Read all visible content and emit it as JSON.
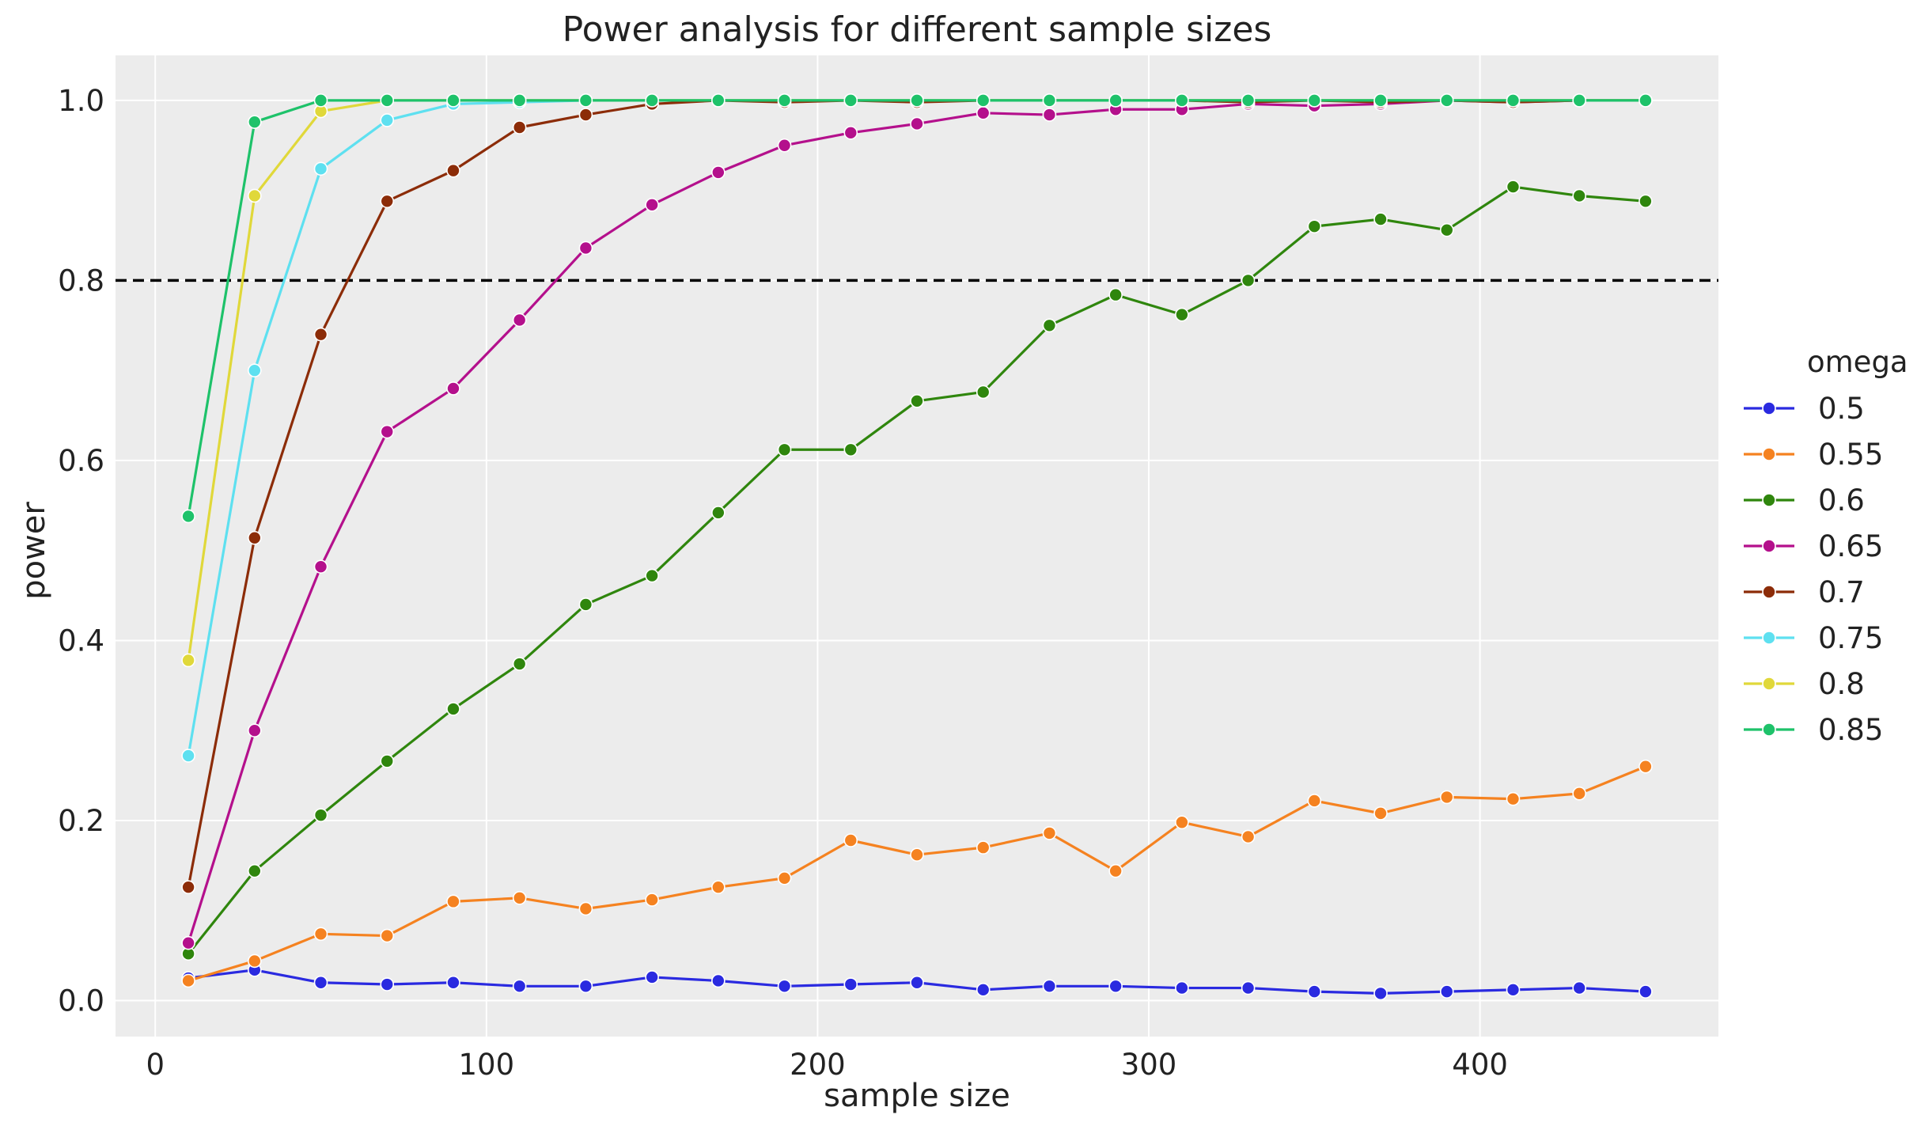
{
  "chart_data": {
    "type": "line",
    "title": "Power analysis for different sample sizes",
    "xlabel": "sample size",
    "ylabel": "power",
    "xlim": [
      -12,
      472
    ],
    "ylim": [
      -0.04,
      1.05
    ],
    "xticks": [
      0,
      100,
      200,
      300,
      400
    ],
    "xtick_labels": [
      "0",
      "100",
      "200",
      "300",
      "400"
    ],
    "yticks": [
      0.0,
      0.2,
      0.4,
      0.6,
      0.8,
      1.0
    ],
    "ytick_labels": [
      "0.0",
      "0.2",
      "0.4",
      "0.6",
      "0.8",
      "1.0"
    ],
    "grid": true,
    "background": "#ececec",
    "reference_line": {
      "y": 0.8,
      "style": "dashed",
      "color": "#000000"
    },
    "legend": {
      "title": "omega",
      "placement": "right"
    },
    "x": [
      10,
      30,
      50,
      70,
      90,
      110,
      130,
      150,
      170,
      190,
      210,
      230,
      250,
      270,
      290,
      310,
      330,
      350,
      370,
      390,
      410,
      430,
      450
    ],
    "series": [
      {
        "name": "0.5",
        "color": "#2a2ae0",
        "values": [
          0.025,
          0.034,
          0.02,
          0.018,
          0.02,
          0.016,
          0.016,
          0.026,
          0.022,
          0.016,
          0.018,
          0.02,
          0.012,
          0.016,
          0.016,
          0.014,
          0.014,
          0.01,
          0.008,
          0.01,
          0.012,
          0.014,
          0.01
        ]
      },
      {
        "name": "0.55",
        "color": "#f58220",
        "values": [
          0.022,
          0.044,
          0.074,
          0.072,
          0.11,
          0.114,
          0.102,
          0.112,
          0.126,
          0.136,
          0.178,
          0.162,
          0.17,
          0.186,
          0.144,
          0.198,
          0.182,
          0.222,
          0.208,
          0.226,
          0.224,
          0.23,
          0.26
        ]
      },
      {
        "name": "0.6",
        "color": "#2f860d",
        "values": [
          0.052,
          0.144,
          0.206,
          0.266,
          0.324,
          0.374,
          0.44,
          0.472,
          0.542,
          0.612,
          0.612,
          0.666,
          0.676,
          0.75,
          0.784,
          0.762,
          0.8,
          0.86,
          0.868,
          0.856,
          0.904,
          0.894,
          0.888
        ]
      },
      {
        "name": "0.65",
        "color": "#b4108c",
        "values": [
          0.064,
          0.3,
          0.482,
          0.632,
          0.68,
          0.756,
          0.836,
          0.884,
          0.92,
          0.95,
          0.964,
          0.974,
          0.986,
          0.984,
          0.99,
          0.99,
          0.996,
          0.994,
          0.996,
          1.0,
          0.998,
          1.0,
          1.0
        ]
      },
      {
        "name": "0.7",
        "color": "#8c2c08",
        "values": [
          0.126,
          0.514,
          0.74,
          0.888,
          0.922,
          0.97,
          0.984,
          0.996,
          1.0,
          0.998,
          1.0,
          0.998,
          1.0,
          1.0,
          1.0,
          1.0,
          0.998,
          1.0,
          0.998,
          1.0,
          0.998,
          1.0,
          1.0
        ]
      },
      {
        "name": "0.75",
        "color": "#5ee0f0",
        "values": [
          0.272,
          0.7,
          0.924,
          0.978,
          0.996,
          0.998,
          1.0,
          1.0,
          1.0,
          1.0,
          1.0,
          1.0,
          1.0,
          1.0,
          1.0,
          1.0,
          1.0,
          1.0,
          1.0,
          1.0,
          1.0,
          1.0,
          1.0
        ]
      },
      {
        "name": "0.8",
        "color": "#e0d83a",
        "values": [
          0.378,
          0.894,
          0.988,
          1.0,
          1.0,
          1.0,
          1.0,
          1.0,
          1.0,
          1.0,
          1.0,
          1.0,
          1.0,
          1.0,
          1.0,
          1.0,
          1.0,
          1.0,
          1.0,
          1.0,
          1.0,
          1.0,
          1.0
        ]
      },
      {
        "name": "0.85",
        "color": "#1ec26a",
        "values": [
          0.538,
          0.976,
          1.0,
          1.0,
          1.0,
          1.0,
          1.0,
          1.0,
          1.0,
          1.0,
          1.0,
          1.0,
          1.0,
          1.0,
          1.0,
          1.0,
          1.0,
          1.0,
          1.0,
          1.0,
          1.0,
          1.0,
          1.0
        ]
      }
    ]
  }
}
